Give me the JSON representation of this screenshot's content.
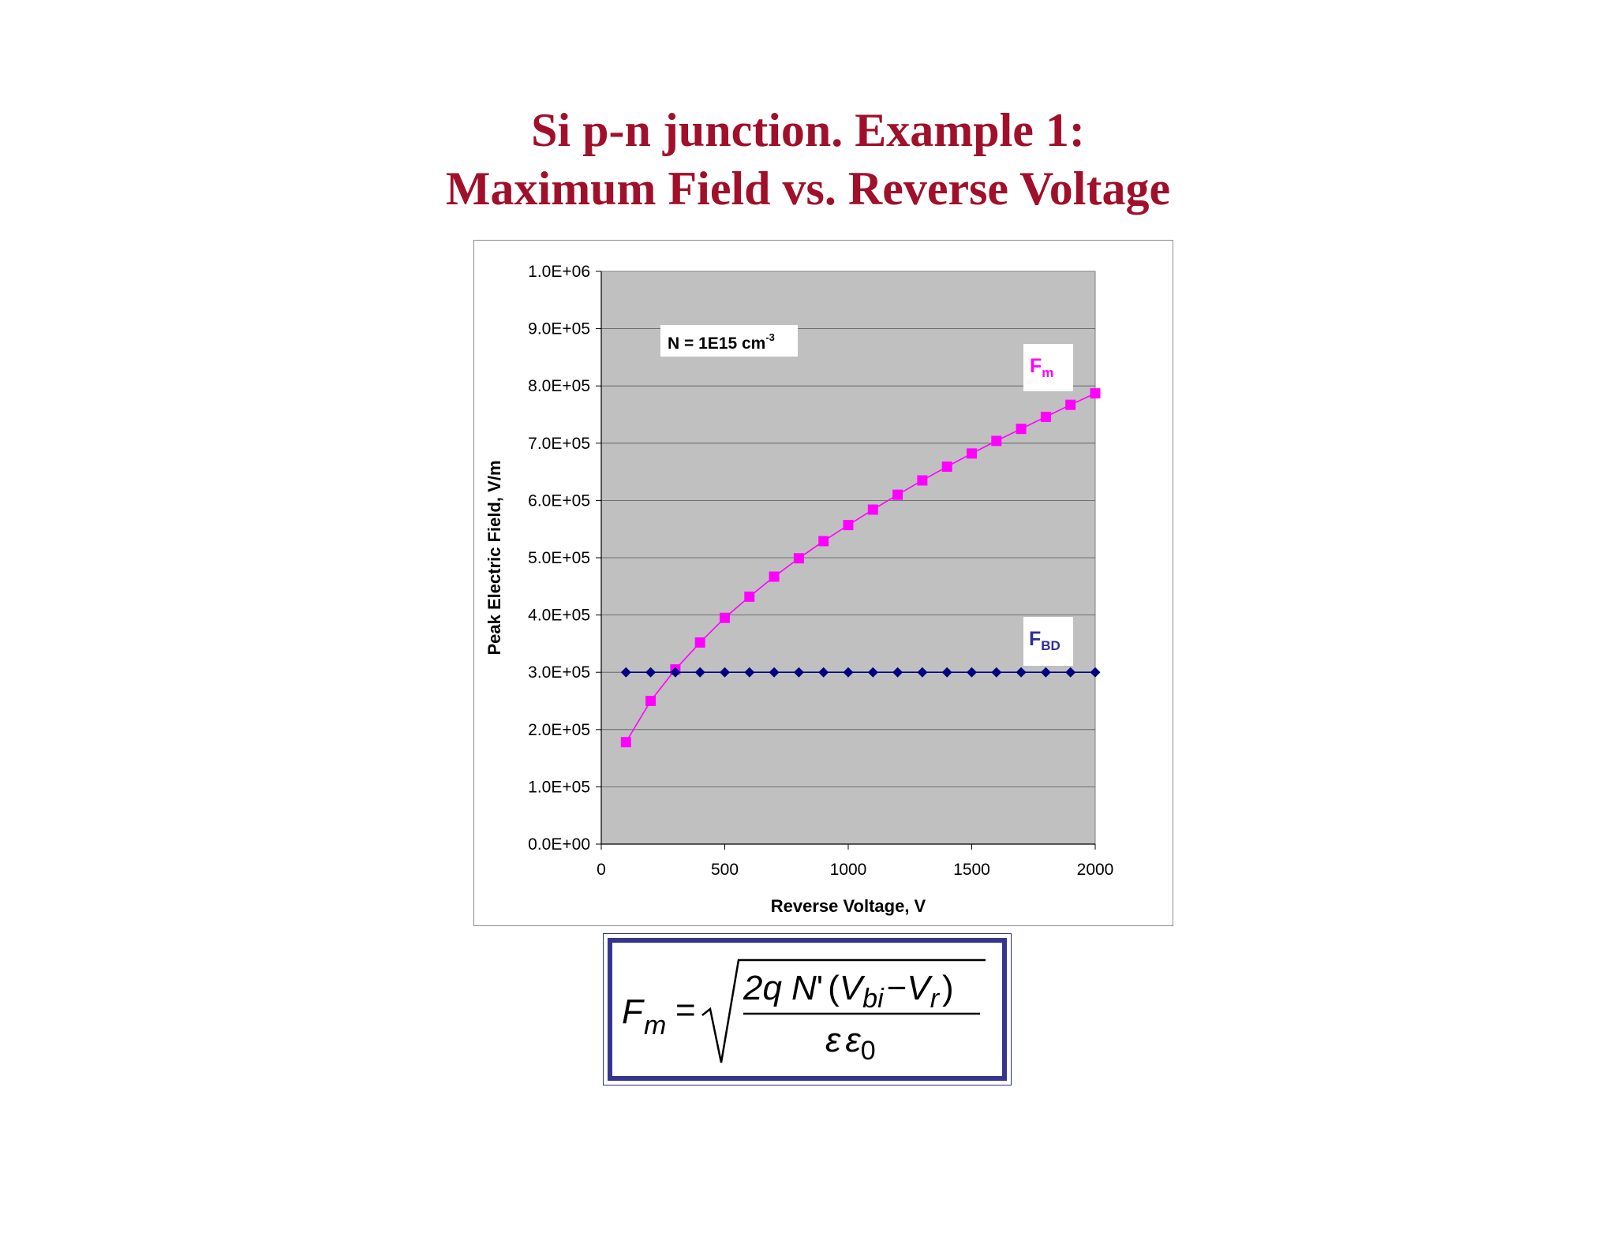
{
  "slide": {
    "title_line1": "Si p-n junction. Example 1:",
    "title_line2": "Maximum Field vs. Reverse Voltage"
  },
  "chart_data": {
    "type": "line",
    "title": "",
    "xlabel": "Reverse Voltage, V",
    "ylabel": "Peak Electric Field, V/m",
    "xlim": [
      0,
      2000
    ],
    "ylim": [
      0,
      1000000
    ],
    "x_ticks": [
      "0",
      "500",
      "1000",
      "1500",
      "2000"
    ],
    "y_ticks": [
      "0.0E+00",
      "1.0E+05",
      "2.0E+05",
      "3.0E+05",
      "4.0E+05",
      "5.0E+05",
      "6.0E+05",
      "7.0E+05",
      "8.0E+05",
      "9.0E+05",
      "1.0E+06"
    ],
    "grid": "horizontal",
    "plot_background": "#c0c0c0",
    "annotation": {
      "text": "N = 1E15 cm",
      "superscript": "-3"
    },
    "x": [
      100,
      200,
      300,
      400,
      500,
      600,
      700,
      800,
      900,
      1000,
      1100,
      1200,
      1300,
      1400,
      1500,
      1600,
      1700,
      1800,
      1900,
      2000
    ],
    "series": [
      {
        "name": "Fm",
        "label_main": "F",
        "label_sub": "m",
        "color": "#ff00ff",
        "marker": "square",
        "values": [
          178000,
          250000,
          305000,
          352000,
          395000,
          432000,
          467000,
          499000,
          529000,
          557000,
          584000,
          610000,
          635000,
          659000,
          682000,
          704000,
          725000,
          746000,
          767000,
          787000
        ]
      },
      {
        "name": "FBD",
        "label_main": "F",
        "label_sub": "BD",
        "color": "#000080",
        "label_color": "#2e2e9a",
        "marker": "diamond",
        "values": [
          300000,
          300000,
          300000,
          300000,
          300000,
          300000,
          300000,
          300000,
          300000,
          300000,
          300000,
          300000,
          300000,
          300000,
          300000,
          300000,
          300000,
          300000,
          300000,
          300000
        ]
      }
    ]
  },
  "formula": {
    "lhs_var": "F",
    "lhs_sub": "m",
    "equals": "=",
    "num_coef": "2q",
    "num_n": "N",
    "num_prime": "'",
    "open_paren": "(",
    "v1": "V",
    "v1_sub": "bi",
    "minus": "−",
    "v2": "V",
    "v2_sub": "r",
    "close_paren": ")",
    "den_eps": "ε",
    "den_eps0": "ε",
    "den_eps0_sub": "0"
  }
}
